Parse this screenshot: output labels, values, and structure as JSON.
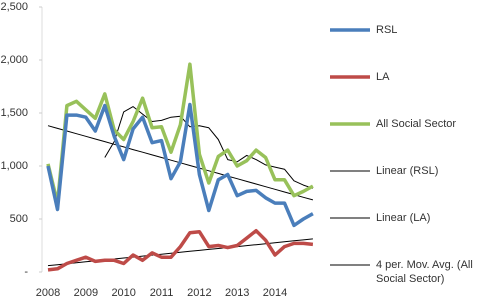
{
  "chart_data": {
    "type": "line",
    "categories": [
      "2008",
      null,
      null,
      null,
      "2009",
      null,
      null,
      null,
      "2010",
      null,
      null,
      null,
      "2011",
      null,
      null,
      null,
      "2012",
      null,
      null,
      null,
      "2013",
      null,
      null,
      null,
      "2014",
      null,
      null,
      null,
      null
    ],
    "ylim": [
      0,
      2500
    ],
    "yticks": [
      {
        "value": 0,
        "label": "-"
      },
      500,
      {
        "value": 1000,
        "label": "1,000"
      },
      {
        "value": 1500,
        "label": "1,500"
      },
      {
        "value": 2000,
        "label": "2,000"
      },
      {
        "value": 2500,
        "label": "2,500"
      }
    ],
    "series": [
      {
        "name": "RSL",
        "color": "#4a7ebb",
        "values": [
          1000,
          590,
          1480,
          1480,
          1460,
          1330,
          1570,
          1280,
          1060,
          1350,
          1460,
          1220,
          1240,
          880,
          1040,
          1580,
          920,
          580,
          870,
          920,
          720,
          760,
          770,
          700,
          650,
          650,
          440,
          500,
          550
        ]
      },
      {
        "name": "LA",
        "color": "#be4b48",
        "values": [
          20,
          30,
          80,
          110,
          140,
          100,
          110,
          110,
          80,
          160,
          110,
          180,
          140,
          140,
          240,
          370,
          380,
          240,
          250,
          230,
          250,
          320,
          390,
          300,
          160,
          240,
          270,
          270,
          260
        ]
      },
      {
        "name": "All Social Sector",
        "color": "#98c15a",
        "values": [
          1020,
          650,
          1570,
          1610,
          1530,
          1450,
          1680,
          1340,
          1250,
          1420,
          1640,
          1360,
          1370,
          1130,
          1390,
          1960,
          1110,
          840,
          1090,
          1150,
          1000,
          1050,
          1150,
          1080,
          870,
          870,
          720,
          760,
          810
        ]
      },
      {
        "name": "Linear (RSL)",
        "color": "#000000",
        "values": [
          1380,
          1355,
          1330,
          1305,
          1280,
          1255,
          1230,
          1205,
          1180,
          1155,
          1130,
          1105,
          1080,
          1055,
          1030,
          1005,
          980,
          955,
          930,
          905,
          880,
          855,
          830,
          805,
          780,
          755,
          730,
          705,
          680
        ]
      },
      {
        "name": "Linear (LA)",
        "color": "#000000",
        "values": [
          60,
          69,
          78,
          87,
          96,
          105,
          114,
          123,
          132,
          141,
          150,
          159,
          168,
          177,
          186,
          195,
          204,
          213,
          222,
          231,
          240,
          249,
          258,
          267,
          276,
          285,
          294,
          303,
          312
        ]
      },
      {
        "name": "4 per. Mov. Avg. (All Social Sector)",
        "color": "#000000",
        "values": [
          null,
          null,
          null,
          null,
          null,
          null,
          1080,
          1230,
          1510,
          1560,
          1490,
          1420,
          1430,
          1460,
          1470,
          1370,
          1380,
          1360,
          1250,
          1060,
          1040,
          1100,
          1060,
          1010,
          990,
          970,
          860,
          820,
          790
        ]
      }
    ]
  }
}
